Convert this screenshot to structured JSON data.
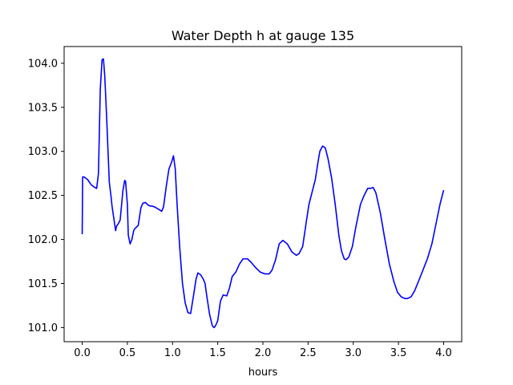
{
  "chart_data": {
    "type": "line",
    "title": "Water Depth h at gauge 135",
    "xlabel": "hours",
    "ylabel": "",
    "xlim": [
      -0.2,
      4.2
    ],
    "ylim": [
      100.84,
      104.19
    ],
    "xticks": [
      0.0,
      0.5,
      1.0,
      1.5,
      2.0,
      2.5,
      3.0,
      3.5,
      4.0
    ],
    "xtick_labels": [
      "0.0",
      "0.5",
      "1.0",
      "1.5",
      "2.0",
      "2.5",
      "3.0",
      "3.5",
      "4.0"
    ],
    "yticks": [
      101.0,
      101.5,
      102.0,
      102.5,
      103.0,
      103.5,
      104.0
    ],
    "ytick_labels": [
      "101.0",
      "101.5",
      "102.0",
      "102.5",
      "103.0",
      "103.5",
      "104.0"
    ],
    "grid": false,
    "legend": "none",
    "series": [
      {
        "color": "#0000ff",
        "x": [
          0.0,
          0.005,
          0.02,
          0.06,
          0.1,
          0.14,
          0.16,
          0.18,
          0.2,
          0.22,
          0.235,
          0.25,
          0.27,
          0.3,
          0.32,
          0.33,
          0.35,
          0.37,
          0.38,
          0.4,
          0.42,
          0.45,
          0.47,
          0.48,
          0.5,
          0.51,
          0.53,
          0.55,
          0.57,
          0.58,
          0.6,
          0.62,
          0.65,
          0.67,
          0.7,
          0.73,
          0.75,
          0.77,
          0.8,
          0.85,
          0.88,
          0.9,
          0.93,
          0.96,
          0.99,
          1.01,
          1.03,
          1.05,
          1.08,
          1.11,
          1.14,
          1.17,
          1.2,
          1.23,
          1.26,
          1.28,
          1.31,
          1.34,
          1.36,
          1.38,
          1.41,
          1.44,
          1.46,
          1.48,
          1.5,
          1.53,
          1.56,
          1.6,
          1.63,
          1.66,
          1.7,
          1.74,
          1.78,
          1.83,
          1.87,
          1.92,
          1.97,
          2.02,
          2.07,
          2.1,
          2.14,
          2.18,
          2.22,
          2.27,
          2.32,
          2.37,
          2.4,
          2.44,
          2.48,
          2.51,
          2.55,
          2.58,
          2.61,
          2.63,
          2.66,
          2.69,
          2.72,
          2.76,
          2.8,
          2.84,
          2.87,
          2.9,
          2.92,
          2.95,
          2.99,
          3.03,
          3.08,
          3.12,
          3.16,
          3.19,
          3.22,
          3.25,
          3.3,
          3.35,
          3.4,
          3.45,
          3.49,
          3.53,
          3.57,
          3.6,
          3.64,
          3.68,
          3.72,
          3.77,
          3.82,
          3.87,
          3.92,
          3.96,
          4.0
        ],
        "y": [
          102.06,
          102.71,
          102.71,
          102.68,
          102.62,
          102.59,
          102.58,
          102.75,
          103.7,
          104.04,
          104.05,
          103.85,
          103.4,
          102.65,
          102.48,
          102.38,
          102.24,
          102.1,
          102.15,
          102.18,
          102.22,
          102.55,
          102.67,
          102.66,
          102.4,
          102.05,
          101.95,
          102.0,
          102.1,
          102.12,
          102.14,
          102.16,
          102.36,
          102.41,
          102.42,
          102.39,
          102.38,
          102.38,
          102.37,
          102.34,
          102.32,
          102.37,
          102.6,
          102.8,
          102.88,
          102.95,
          102.8,
          102.4,
          101.9,
          101.5,
          101.28,
          101.17,
          101.16,
          101.35,
          101.55,
          101.62,
          101.6,
          101.55,
          101.5,
          101.35,
          101.15,
          101.02,
          101.0,
          101.03,
          101.08,
          101.3,
          101.37,
          101.36,
          101.45,
          101.58,
          101.63,
          101.72,
          101.78,
          101.78,
          101.74,
          101.68,
          101.63,
          101.61,
          101.61,
          101.65,
          101.77,
          101.95,
          101.99,
          101.95,
          101.86,
          101.82,
          101.84,
          101.92,
          102.2,
          102.4,
          102.56,
          102.68,
          102.88,
          103.0,
          103.06,
          103.04,
          102.92,
          102.7,
          102.4,
          102.05,
          101.87,
          101.78,
          101.77,
          101.8,
          101.92,
          102.15,
          102.4,
          102.5,
          102.58,
          102.58,
          102.59,
          102.53,
          102.3,
          102.0,
          101.72,
          101.52,
          101.4,
          101.35,
          101.33,
          101.33,
          101.35,
          101.42,
          101.52,
          101.65,
          101.78,
          101.95,
          102.2,
          102.4,
          102.56
        ]
      }
    ]
  }
}
